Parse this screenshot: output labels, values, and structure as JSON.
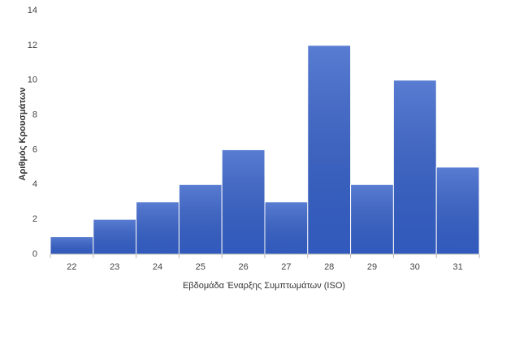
{
  "chart_data": {
    "type": "bar",
    "x_label": "Εβδομάδα Έναρξης Συμπτωμάτων (ISO)",
    "y_label": "Αριθμός Κρουσμάτων",
    "categories": [
      "22",
      "23",
      "24",
      "25",
      "26",
      "27",
      "28",
      "29",
      "30",
      "31"
    ],
    "values": [
      1,
      2,
      3,
      4,
      6,
      3,
      12,
      4,
      10,
      5
    ],
    "color": "#3560c8",
    "ylim": [
      0,
      14
    ],
    "yticks": [
      0,
      2,
      4,
      6,
      8,
      10,
      12,
      14
    ],
    "grid": false
  }
}
